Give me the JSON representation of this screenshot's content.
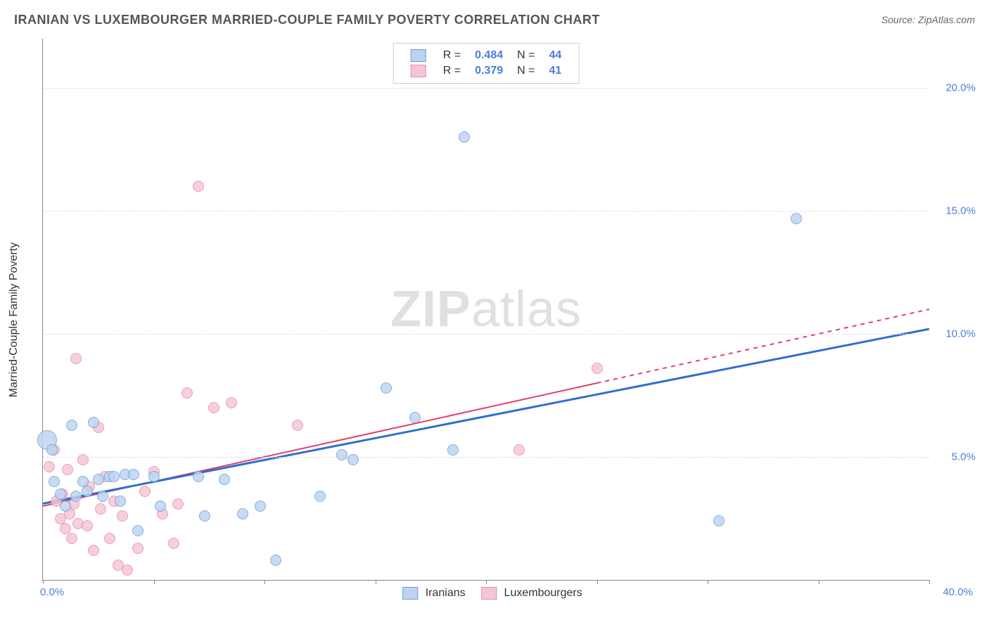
{
  "header": {
    "title": "IRANIAN VS LUXEMBOURGER MARRIED-COUPLE FAMILY POVERTY CORRELATION CHART",
    "source": "Source: ZipAtlas.com"
  },
  "watermark": {
    "part1": "ZIP",
    "part2": "atlas"
  },
  "axes": {
    "ylabel": "Married-Couple Family Poverty",
    "xmin": 0,
    "xmax": 40,
    "ymin": 0,
    "ymax": 22,
    "x_tick_step": 5,
    "x_left_label": "0.0%",
    "x_right_label": "40.0%",
    "y_ticks": [
      {
        "v": 5,
        "label": "5.0%"
      },
      {
        "v": 10,
        "label": "10.0%"
      },
      {
        "v": 15,
        "label": "15.0%"
      },
      {
        "v": 20,
        "label": "20.0%"
      }
    ],
    "grid_color": "#dddddd",
    "tick_label_color": "#4a7fd8"
  },
  "series": {
    "iranians": {
      "label": "Iranians",
      "fill": "#bdd4f0",
      "stroke": "#6a9edb",
      "trend_color": "#2f6fd0",
      "trend_width": 3,
      "R": "0.484",
      "N": "44",
      "trend": {
        "x1": 0,
        "y1": 3.1,
        "x2": 40,
        "y2": 10.2,
        "dash_after_x": null
      },
      "marker_r": 8,
      "points": [
        {
          "x": 0.2,
          "y": 5.7,
          "r": 14
        },
        {
          "x": 0.4,
          "y": 5.3
        },
        {
          "x": 0.5,
          "y": 4.0
        },
        {
          "x": 0.8,
          "y": 3.5
        },
        {
          "x": 1.0,
          "y": 3.0
        },
        {
          "x": 1.3,
          "y": 6.3
        },
        {
          "x": 1.5,
          "y": 3.4
        },
        {
          "x": 1.8,
          "y": 4.0
        },
        {
          "x": 2.0,
          "y": 3.6
        },
        {
          "x": 2.3,
          "y": 6.4
        },
        {
          "x": 2.5,
          "y": 4.1
        },
        {
          "x": 2.7,
          "y": 3.4
        },
        {
          "x": 3.0,
          "y": 4.2
        },
        {
          "x": 3.2,
          "y": 4.2
        },
        {
          "x": 3.5,
          "y": 3.2
        },
        {
          "x": 3.7,
          "y": 4.3
        },
        {
          "x": 4.1,
          "y": 4.3
        },
        {
          "x": 4.3,
          "y": 2.0
        },
        {
          "x": 5.0,
          "y": 4.2
        },
        {
          "x": 5.3,
          "y": 3.0
        },
        {
          "x": 7.0,
          "y": 4.2
        },
        {
          "x": 7.3,
          "y": 2.6
        },
        {
          "x": 8.2,
          "y": 4.1
        },
        {
          "x": 9.0,
          "y": 2.7
        },
        {
          "x": 9.8,
          "y": 3.0
        },
        {
          "x": 10.5,
          "y": 0.8
        },
        {
          "x": 12.5,
          "y": 3.4
        },
        {
          "x": 13.5,
          "y": 5.1
        },
        {
          "x": 14.0,
          "y": 4.9
        },
        {
          "x": 15.5,
          "y": 7.8
        },
        {
          "x": 16.8,
          "y": 6.6
        },
        {
          "x": 18.5,
          "y": 5.3
        },
        {
          "x": 19.0,
          "y": 18.0
        },
        {
          "x": 30.5,
          "y": 2.4
        },
        {
          "x": 34.0,
          "y": 14.7
        }
      ]
    },
    "luxembourgers": {
      "label": "Luxembourgers",
      "fill": "#f4c6d2",
      "stroke": "#e88aa5",
      "trend_color": "#e23f6e",
      "trend_width": 2,
      "R": "0.379",
      "N": "41",
      "trend": {
        "x1": 0,
        "y1": 3.0,
        "x2": 40,
        "y2": 11.0,
        "dash_after_x": 25
      },
      "marker_r": 8,
      "points": [
        {
          "x": 0.3,
          "y": 4.6
        },
        {
          "x": 0.5,
          "y": 5.3
        },
        {
          "x": 0.6,
          "y": 3.2
        },
        {
          "x": 0.8,
          "y": 2.5
        },
        {
          "x": 0.9,
          "y": 3.5
        },
        {
          "x": 1.0,
          "y": 2.1
        },
        {
          "x": 1.1,
          "y": 4.5
        },
        {
          "x": 1.2,
          "y": 2.7
        },
        {
          "x": 1.3,
          "y": 1.7
        },
        {
          "x": 1.4,
          "y": 3.1
        },
        {
          "x": 1.5,
          "y": 9.0
        },
        {
          "x": 1.6,
          "y": 2.3
        },
        {
          "x": 1.8,
          "y": 4.9
        },
        {
          "x": 2.0,
          "y": 2.2
        },
        {
          "x": 2.1,
          "y": 3.8
        },
        {
          "x": 2.3,
          "y": 1.2
        },
        {
          "x": 2.5,
          "y": 6.2
        },
        {
          "x": 2.6,
          "y": 2.9
        },
        {
          "x": 2.8,
          "y": 4.2
        },
        {
          "x": 3.0,
          "y": 1.7
        },
        {
          "x": 3.2,
          "y": 3.2
        },
        {
          "x": 3.4,
          "y": 0.6
        },
        {
          "x": 3.6,
          "y": 2.6
        },
        {
          "x": 3.8,
          "y": 0.4
        },
        {
          "x": 4.3,
          "y": 1.3
        },
        {
          "x": 4.6,
          "y": 3.6
        },
        {
          "x": 5.0,
          "y": 4.4
        },
        {
          "x": 5.4,
          "y": 2.7
        },
        {
          "x": 5.9,
          "y": 1.5
        },
        {
          "x": 6.1,
          "y": 3.1
        },
        {
          "x": 6.5,
          "y": 7.6
        },
        {
          "x": 7.0,
          "y": 16.0
        },
        {
          "x": 7.7,
          "y": 7.0
        },
        {
          "x": 8.5,
          "y": 7.2
        },
        {
          "x": 11.5,
          "y": 6.3
        },
        {
          "x": 21.5,
          "y": 5.3
        },
        {
          "x": 25.0,
          "y": 8.6
        }
      ]
    }
  },
  "legend_top_labels": {
    "R": "R =",
    "N": "N ="
  }
}
